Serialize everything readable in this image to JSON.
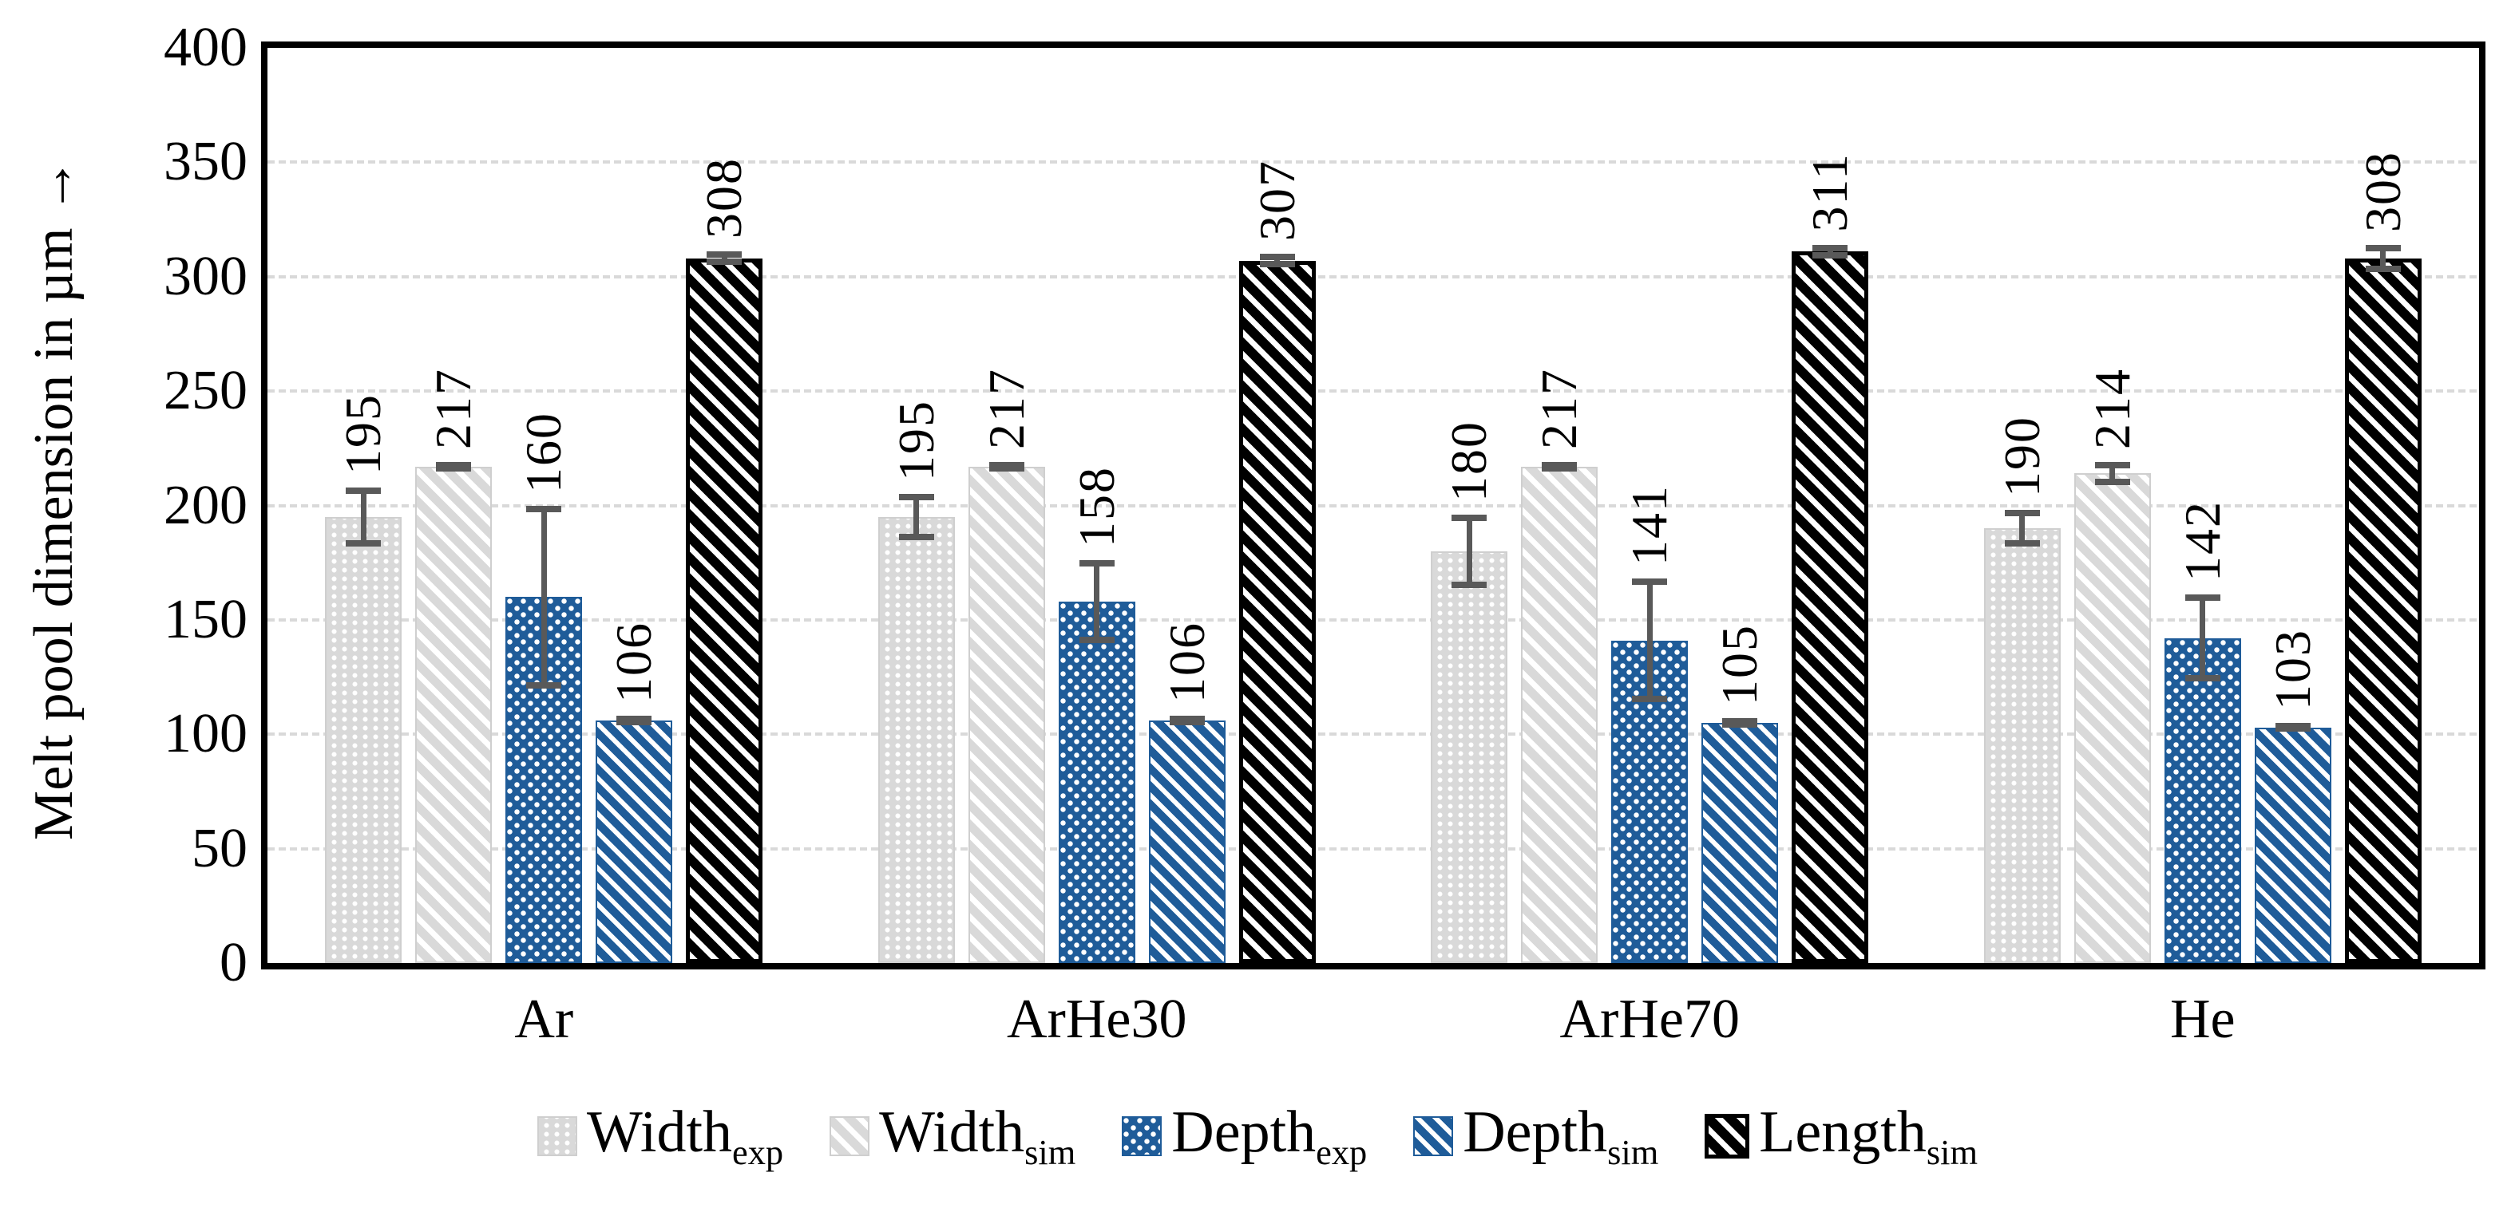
{
  "chart_data": {
    "type": "bar",
    "title": "",
    "ylabel": "Melt pool dimension in µm →",
    "xlabel": "",
    "ylim": [
      0,
      400
    ],
    "yticks": [
      0,
      50,
      100,
      150,
      200,
      250,
      300,
      350,
      400
    ],
    "grid": "horizontal dashed lines every 50",
    "legend_position": "bottom",
    "categories": [
      "Ar",
      "ArHe30",
      "ArHe70",
      "He"
    ],
    "series": [
      {
        "name": "Width",
        "subscript": "exp",
        "pattern": "gray-dot-grid",
        "color": "#d9d9d9",
        "values": [
          195,
          195,
          180,
          190
        ],
        "errors": [
          13,
          10,
          16,
          8
        ]
      },
      {
        "name": "Width",
        "subscript": "sim",
        "pattern": "gray-diagonal",
        "color": "#d9d9d9",
        "values": [
          217,
          217,
          217,
          214
        ],
        "errors": [
          2,
          2,
          2,
          5
        ]
      },
      {
        "name": "Depth",
        "subscript": "exp",
        "pattern": "blue-dot-grid",
        "color": "#1f5c99",
        "values": [
          160,
          158,
          141,
          142
        ],
        "errors": [
          40,
          18,
          27,
          19
        ]
      },
      {
        "name": "Depth",
        "subscript": "sim",
        "pattern": "blue-diagonal",
        "color": "#1f5c99",
        "values": [
          106,
          106,
          105,
          103
        ],
        "errors": [
          2,
          2,
          2,
          2
        ]
      },
      {
        "name": "Length",
        "subscript": "sim",
        "pattern": "black-diagonal",
        "color": "#000000",
        "values": [
          308,
          307,
          311,
          308
        ],
        "errors": [
          3,
          3,
          3,
          6
        ]
      }
    ],
    "error_bar_color": "#595959",
    "gridline_color": "#d9d9d9",
    "frame_color": "#000000"
  }
}
